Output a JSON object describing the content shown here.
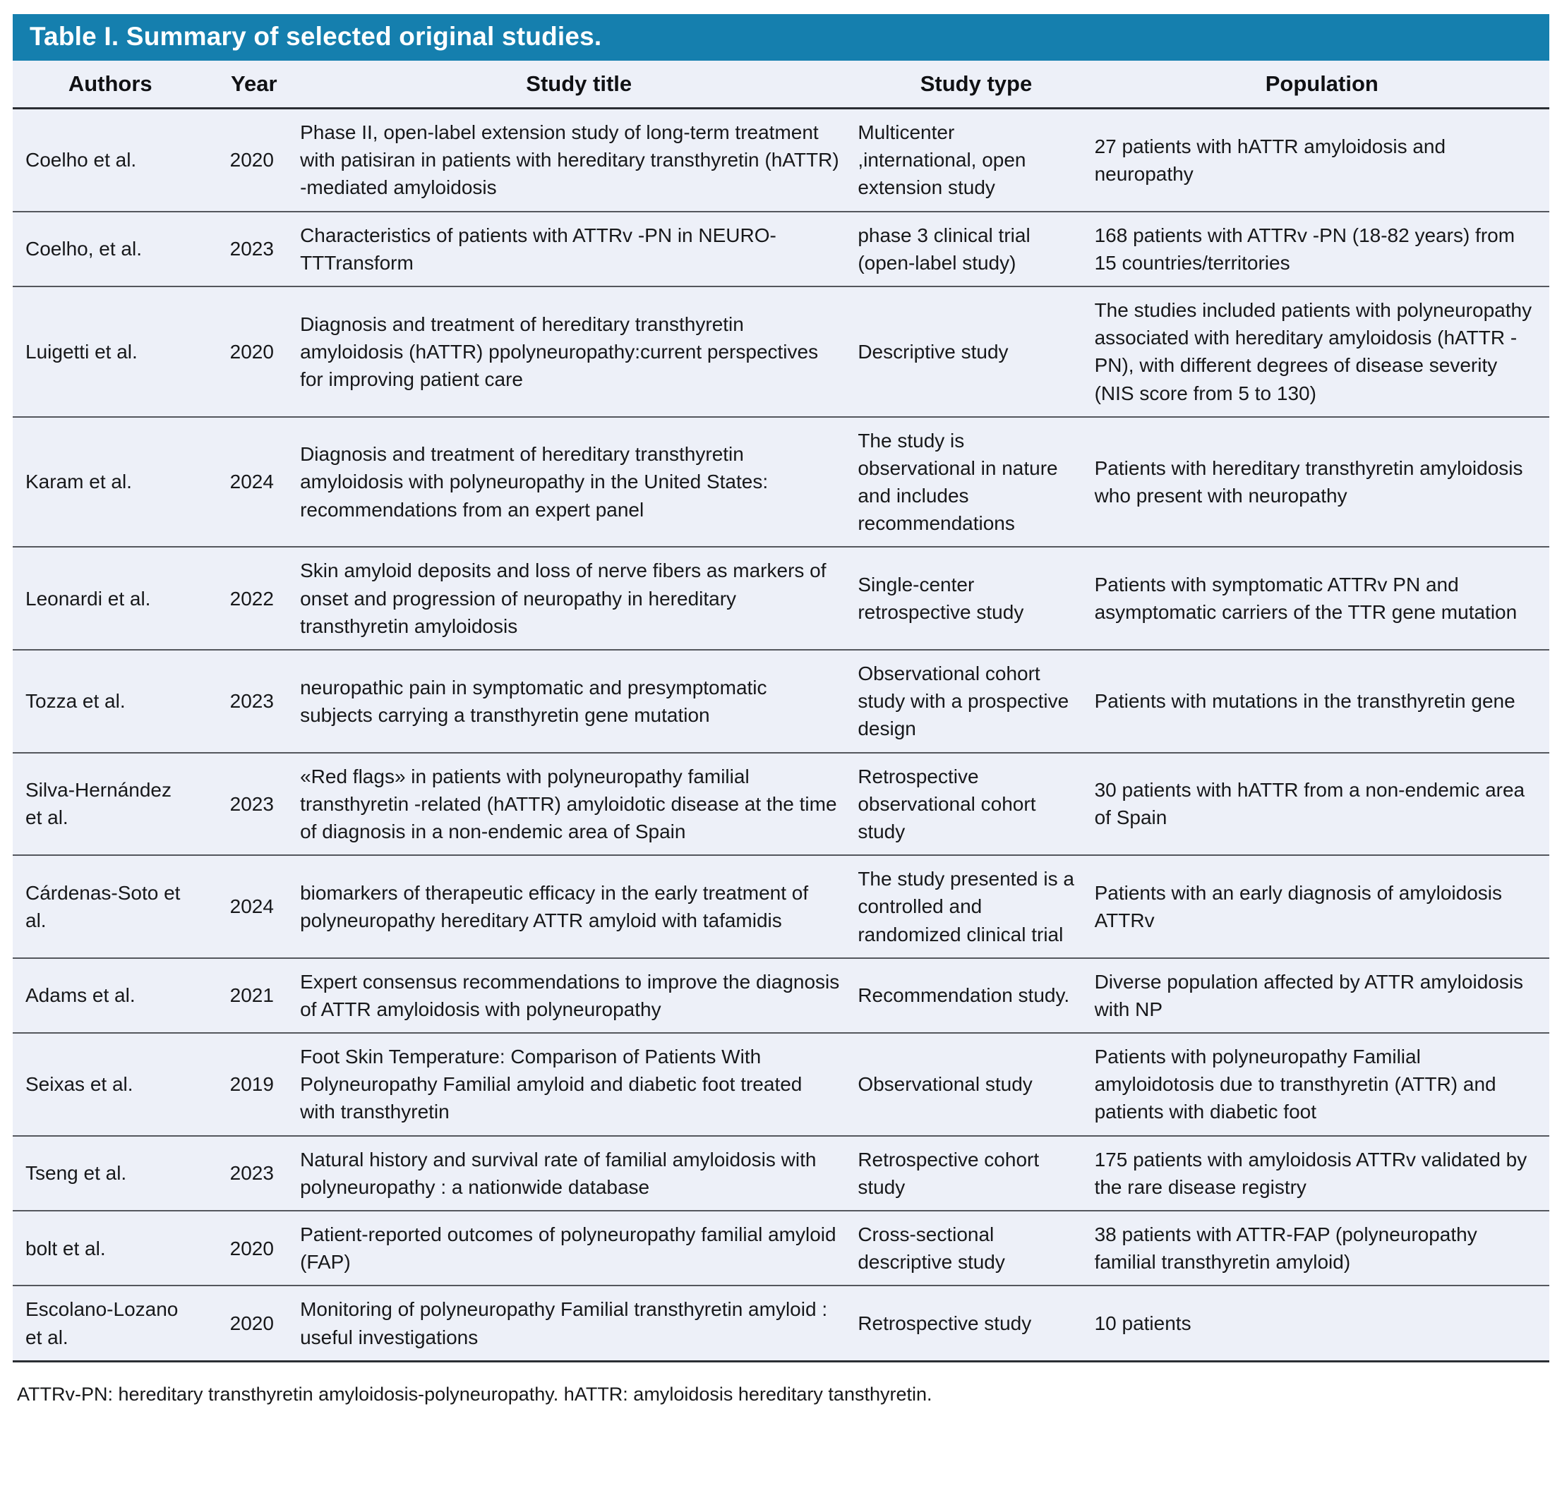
{
  "table": {
    "title": "Table I. Summary of selected original studies.",
    "columns": [
      "Authors",
      "Year",
      "Study title",
      "Study type",
      "Population"
    ],
    "rows": [
      {
        "authors": "Coelho et al.",
        "year": "2020",
        "title": "Phase II, open-label extension study of long-term treatment with patisiran in patients with hereditary transthyretin (hATTR) -mediated amyloidosis",
        "type": "Multicenter ,international, open extension study",
        "population": "27 patients with hATTR amyloidosis and neuropathy"
      },
      {
        "authors": "Coelho, et al.",
        "year": "2023",
        "title": "Characteristics of patients with ATTRv -PN in NEURO- TTTransform",
        "type": "phase 3 clinical trial (open-label study)",
        "population": "168 patients with ATTRv -PN (18-82 years) from 15 countries/territories"
      },
      {
        "authors": "Luigetti et al.",
        "year": "2020",
        "title": "Diagnosis and treatment of hereditary transthyretin amyloidosis (hATTR) ppolyneuropathy:current perspectives for improving patient care",
        "type": "Descriptive study",
        "population": "The studies included patients with polyneuropathy associated with hereditary amyloidosis (hATTR - PN), with different degrees of disease severity (NIS score from 5 to 130)"
      },
      {
        "authors": "Karam et al.",
        "year": "2024",
        "title": "Diagnosis and treatment of hereditary transthyretin amyloidosis with polyneuropathy in the United States: recommendations from an expert panel",
        "type": "The study is observational in nature and includes recommendations",
        "population": "Patients with hereditary transthyretin amyloidosis who present with neuropathy"
      },
      {
        "authors": "Leonardi et al.",
        "year": "2022",
        "title": "Skin amyloid deposits and loss of nerve fibers as markers of onset and progression of neuropathy in hereditary transthyretin amyloidosis",
        "type": "Single-center retrospective study",
        "population": "Patients with symptomatic ATTRv PN and asymptomatic carriers of the TTR gene mutation"
      },
      {
        "authors": "Tozza et al.",
        "year": "2023",
        "title": "neuropathic pain in symptomatic and presymptomatic subjects carrying a transthyretin gene mutation",
        "type": "Observational cohort study with a prospective design",
        "population": "Patients with mutations in the transthyretin gene"
      },
      {
        "authors": "Silva-Hernández et al.",
        "year": "2023",
        "title": "«Red flags» in patients with polyneuropathy familial transthyretin -related (hATTR) amyloidotic disease at the time of diagnosis in a non-endemic area of Spain",
        "type": "Retrospective observational cohort study",
        "population": "30 patients with hATTR from a non-endemic area of Spain"
      },
      {
        "authors": "Cárdenas-Soto et al.",
        "year": "2024",
        "title": "biomarkers of therapeutic efficacy in the early treatment of polyneuropathy hereditary ATTR amyloid with tafamidis",
        "type": "The study presented is a controlled and randomized clinical trial",
        "population": "Patients with an early diagnosis of amyloidosis ATTRv"
      },
      {
        "authors": "Adams et al.",
        "year": "2021",
        "title": "Expert consensus recommendations to improve the diagnosis of ATTR amyloidosis with polyneuropathy",
        "type": "Recommendation study.",
        "population": "Diverse population affected by ATTR amyloidosis with NP"
      },
      {
        "authors": "Seixas et al.",
        "year": "2019",
        "title": "Foot Skin Temperature: Comparison of Patients With Polyneuropathy Familial amyloid and diabetic foot treated with transthyretin",
        "type": "Observational study",
        "population": "Patients with polyneuropathy Familial amyloidotosis due to transthyretin (ATTR) and patients with diabetic foot"
      },
      {
        "authors": "Tseng et al.",
        "year": "2023",
        "title": "Natural history and survival rate of familial amyloidosis with polyneuropathy : a nationwide database",
        "type": "Retrospective cohort study",
        "population": "175 patients with amyloidosis ATTRv validated by the rare disease registry"
      },
      {
        "authors": "bolt et al.",
        "year": "2020",
        "title": "Patient-reported outcomes of polyneuropathy familial amyloid (FAP)",
        "type": "Cross-sectional descriptive study",
        "population": "38 patients with ATTR-FAP (polyneuropathy familial transthyretin amyloid)"
      },
      {
        "authors": "Escolano-Lozano et al.",
        "year": "2020",
        "title": "Monitoring of polyneuropathy Familial transthyretin amyloid : useful investigations",
        "type": "Retrospective study",
        "population": "10 patients"
      }
    ],
    "footnote": "ATTRv-PN: hereditary transthyretin amyloidosis-polyneuropathy. hATTR: amyloidosis hereditary tansthyretin.",
    "colors": {
      "title_bar": "#157fae",
      "body_bg": "#edf0f8",
      "divider": "#54575d",
      "header_rule": "#2b2e33",
      "title_text": "#ffffff",
      "body_text": "#17181a"
    }
  }
}
